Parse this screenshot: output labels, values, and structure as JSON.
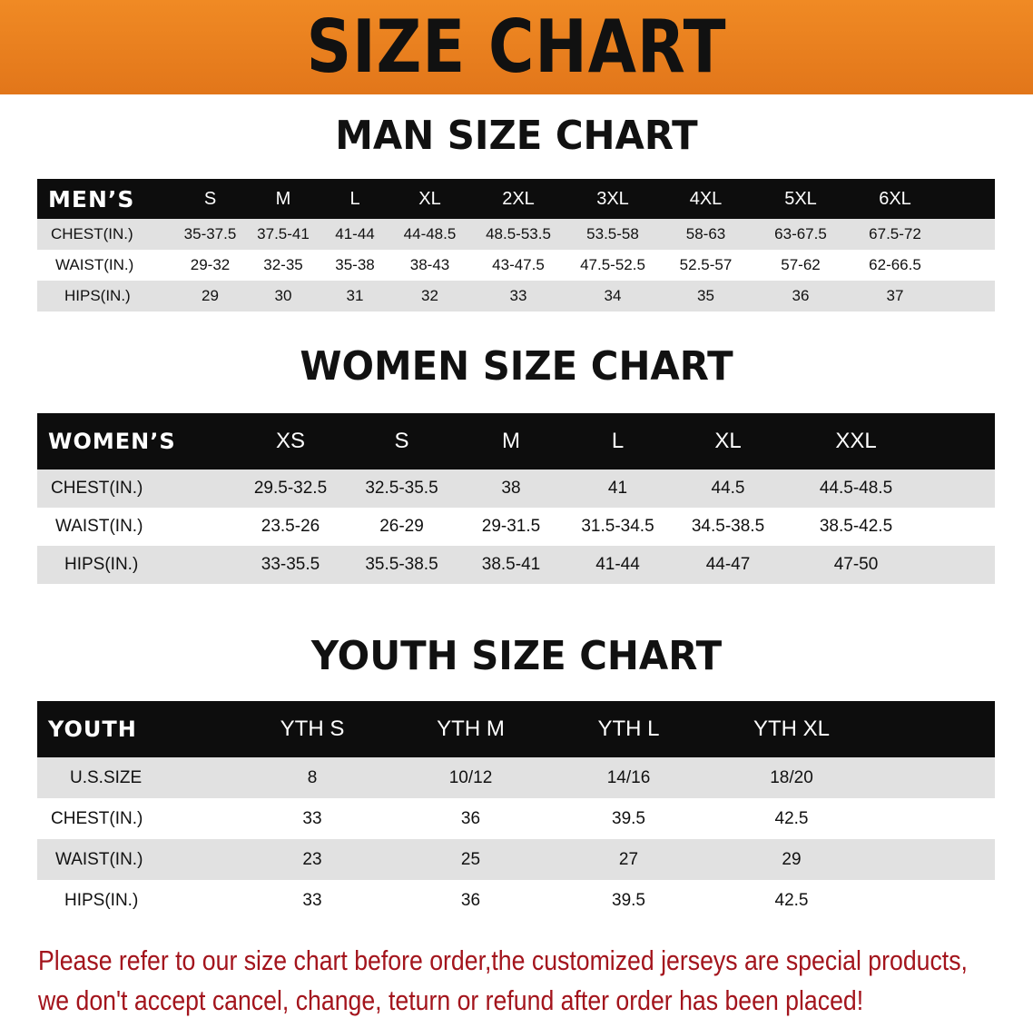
{
  "title": "SIZE CHART",
  "colors": {
    "banner": "#e8821e",
    "header_row": "#0d0d0d",
    "stripe": "#e1e1e1",
    "notice_text": "#a3141c"
  },
  "tables": [
    {
      "id": "men",
      "title": "MAN SIZE CHART",
      "header_label": "MEN’S",
      "sizes": [
        "S",
        "M",
        "L",
        "XL",
        "2XL",
        "3XL",
        "4XL",
        "5XL",
        "6XL"
      ],
      "rows": [
        {
          "label": "CHEST(IN.)",
          "values": [
            "35-37.5",
            "37.5-41",
            "41-44",
            "44-48.5",
            "48.5-53.5",
            "53.5-58",
            "58-63",
            "63-67.5",
            "67.5-72"
          ]
        },
        {
          "label": "WAIST(IN.)",
          "values": [
            "29-32",
            "32-35",
            "35-38",
            "38-43",
            "43-47.5",
            "47.5-52.5",
            "52.5-57",
            "57-62",
            "62-66.5"
          ]
        },
        {
          "label": "HIPS(IN.)",
          "values": [
            "29",
            "30",
            "31",
            "32",
            "33",
            "34",
            "35",
            "36",
            "37"
          ]
        }
      ]
    },
    {
      "id": "women",
      "title": "WOMEN SIZE CHART",
      "header_label": "WOMEN’S",
      "sizes": [
        "XS",
        "S",
        "M",
        "L",
        "XL",
        "XXL"
      ],
      "rows": [
        {
          "label": "CHEST(IN.)",
          "values": [
            "29.5-32.5",
            "32.5-35.5",
            "38",
            "41",
            "44.5",
            "44.5-48.5"
          ]
        },
        {
          "label": "WAIST(IN.)",
          "values": [
            "23.5-26",
            "26-29",
            "29-31.5",
            "31.5-34.5",
            "34.5-38.5",
            "38.5-42.5"
          ]
        },
        {
          "label": "HIPS(IN.)",
          "values": [
            "33-35.5",
            "35.5-38.5",
            "38.5-41",
            "41-44",
            "44-47",
            "47-50"
          ]
        }
      ]
    },
    {
      "id": "youth",
      "title": "YOUTH SIZE CHART",
      "header_label": "YOUTH",
      "sizes": [
        "YTH S",
        "YTH M",
        "YTH L",
        "YTH XL"
      ],
      "rows": [
        {
          "label": "U.S.SIZE",
          "values": [
            "8",
            "10/12",
            "14/16",
            "18/20"
          ]
        },
        {
          "label": "CHEST(IN.)",
          "values": [
            "33",
            "36",
            "39.5",
            "42.5"
          ]
        },
        {
          "label": "WAIST(IN.)",
          "values": [
            "23",
            "25",
            "27",
            "29"
          ]
        },
        {
          "label": "HIPS(IN.)",
          "values": [
            "33",
            "36",
            "39.5",
            "42.5"
          ]
        }
      ]
    }
  ],
  "notice": {
    "line1": "Please refer to our size chart before order,the customized jerseys are special products,",
    "line2": "we don't accept cancel, change, teturn or refund after order has been placed!"
  }
}
